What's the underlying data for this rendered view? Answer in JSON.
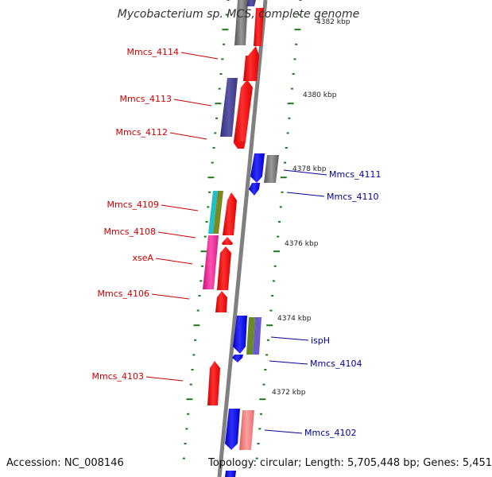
{
  "title": "Mycobacterium sp. MCS, complete genome",
  "accession": "Accession: NC_008146",
  "topology": "Topology: circular; Length: 5,705,448 bp; Genes: 5,451",
  "colors": {
    "forward": "#ee0000",
    "reverse": "#0000ee",
    "backbone": "#888888",
    "ticks": "#1a7a1a",
    "left_label": "#cc0000",
    "right_label": "#000099"
  },
  "kbp_marks": [
    "4382 kbp",
    "4380 kbp",
    "4378 kbp",
    "4376 kbp",
    "4374 kbp",
    "4372 kbp"
  ],
  "left_labels": [
    "Mmcs_4114",
    "Mmcs_4113",
    "Mmcs_4112",
    "Mmcs_4109",
    "Mmcs_4108",
    "xseA",
    "Mmcs_4106",
    "Mmcs_4103"
  ],
  "right_labels": [
    "Mmcs_4111",
    "Mmcs_4110",
    "ispH",
    "Mmcs_4104",
    "Mmcs_4102"
  ]
}
